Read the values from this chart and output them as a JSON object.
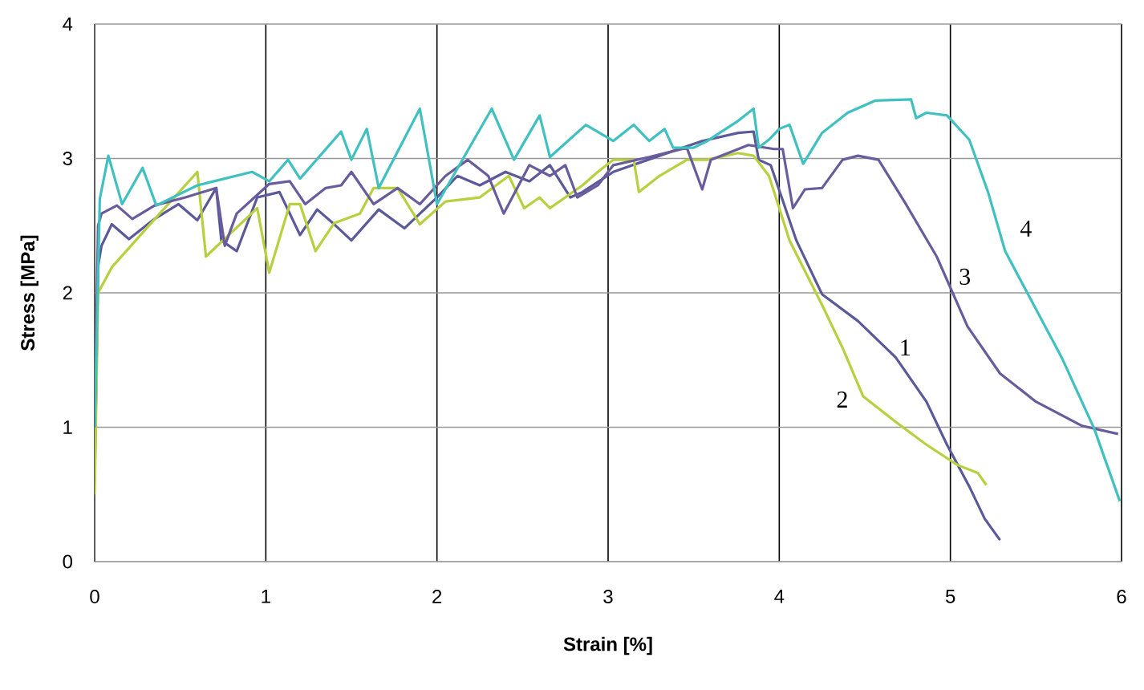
{
  "chart_data": {
    "type": "line",
    "xlabel": "Strain [%]",
    "ylabel": "Stress [MPa]",
    "xlim": [
      0,
      6
    ],
    "ylim": [
      0,
      4
    ],
    "xticks": [
      0,
      1,
      2,
      3,
      4,
      5,
      6
    ],
    "yticks": [
      0,
      1,
      2,
      3,
      4
    ],
    "grid": true,
    "line_style": "solid",
    "marker": "none",
    "series": [
      {
        "name": "1",
        "color": "#5a5a9a",
        "x": [
          0,
          0.02,
          0.04,
          0.1,
          0.2,
          0.35,
          0.49,
          0.6,
          0.71,
          0.74,
          0.83,
          0.95,
          1.08,
          1.2,
          1.3,
          1.4,
          1.5,
          1.66,
          1.81,
          2.0,
          2.12,
          2.25,
          2.4,
          2.54,
          2.66,
          2.78,
          2.85,
          3.03,
          3.3,
          3.55,
          3.76,
          3.85,
          3.88,
          3.95,
          4.1,
          4.25,
          4.46,
          4.68,
          4.86,
          4.98,
          5.11,
          5.2,
          5.29
        ],
        "values": [
          0.6,
          2.2,
          2.35,
          2.51,
          2.4,
          2.55,
          2.66,
          2.54,
          2.78,
          2.39,
          2.31,
          2.71,
          2.75,
          2.43,
          2.62,
          2.51,
          2.39,
          2.62,
          2.48,
          2.71,
          2.87,
          2.8,
          2.9,
          2.83,
          2.95,
          2.71,
          2.75,
          2.9,
          3.02,
          3.13,
          3.19,
          3.2,
          2.99,
          2.95,
          2.39,
          1.99,
          1.79,
          1.52,
          1.19,
          0.87,
          0.56,
          0.32,
          0.16
        ]
      },
      {
        "name": "2",
        "color": "#b8d040",
        "x": [
          0,
          0.02,
          0.1,
          0.38,
          0.6,
          0.65,
          0.8,
          0.95,
          1.02,
          1.14,
          1.2,
          1.29,
          1.4,
          1.55,
          1.63,
          1.77,
          1.9,
          2.05,
          2.25,
          2.42,
          2.51,
          2.6,
          2.66,
          2.85,
          2.94,
          3.03,
          3.15,
          3.18,
          3.3,
          3.46,
          3.58,
          3.76,
          3.85,
          3.94,
          4.03,
          4.06,
          4.25,
          4.37,
          4.49,
          4.68,
          4.86,
          5.04,
          5.16,
          5.21
        ],
        "values": [
          0.5,
          2.0,
          2.19,
          2.59,
          2.9,
          2.27,
          2.45,
          2.63,
          2.15,
          2.66,
          2.66,
          2.31,
          2.52,
          2.59,
          2.78,
          2.78,
          2.51,
          2.68,
          2.71,
          2.87,
          2.63,
          2.71,
          2.63,
          2.8,
          2.9,
          2.99,
          2.99,
          2.75,
          2.87,
          2.99,
          2.99,
          3.04,
          3.02,
          2.87,
          2.51,
          2.39,
          1.91,
          1.59,
          1.23,
          1.04,
          0.87,
          0.72,
          0.66,
          0.57
        ]
      },
      {
        "name": "3",
        "color": "#6a5c9c",
        "x": [
          0,
          0.02,
          0.04,
          0.13,
          0.22,
          0.35,
          0.53,
          0.71,
          0.76,
          0.83,
          1.02,
          1.14,
          1.23,
          1.35,
          1.44,
          1.5,
          1.63,
          1.77,
          1.9,
          2.05,
          2.18,
          2.3,
          2.39,
          2.54,
          2.66,
          2.75,
          2.82,
          2.94,
          3.03,
          3.24,
          3.46,
          3.55,
          3.6,
          3.82,
          3.97,
          4.02,
          4.08,
          4.15,
          4.25,
          4.37,
          4.46,
          4.58,
          4.74,
          4.92,
          5.01,
          5.1,
          5.29,
          5.5,
          5.77,
          5.98
        ],
        "values": [
          1.0,
          2.5,
          2.59,
          2.65,
          2.55,
          2.65,
          2.71,
          2.78,
          2.35,
          2.59,
          2.81,
          2.83,
          2.66,
          2.78,
          2.8,
          2.9,
          2.66,
          2.78,
          2.66,
          2.87,
          2.99,
          2.87,
          2.59,
          2.95,
          2.87,
          2.95,
          2.71,
          2.8,
          2.95,
          3.01,
          3.08,
          2.77,
          2.99,
          3.1,
          3.07,
          3.07,
          2.63,
          2.77,
          2.78,
          2.99,
          3.02,
          2.99,
          2.66,
          2.27,
          2.01,
          1.75,
          1.4,
          1.19,
          1.01,
          0.95
        ]
      },
      {
        "name": "4",
        "color": "#40c0c0",
        "x": [
          0,
          0.03,
          0.08,
          0.16,
          0.28,
          0.36,
          0.6,
          0.92,
          1.02,
          1.13,
          1.2,
          1.44,
          1.5,
          1.59,
          1.66,
          1.9,
          2.0,
          2.32,
          2.45,
          2.6,
          2.66,
          2.87,
          3.03,
          3.15,
          3.24,
          3.33,
          3.38,
          3.5,
          3.58,
          3.76,
          3.85,
          3.88,
          3.94,
          4.0,
          4.06,
          4.14,
          4.25,
          4.4,
          4.56,
          4.77,
          4.8,
          4.86,
          4.98,
          5.11,
          5.22,
          5.32,
          5.47,
          5.65,
          5.84,
          5.99
        ],
        "values": [
          1.0,
          2.7,
          3.02,
          2.66,
          2.93,
          2.65,
          2.8,
          2.9,
          2.83,
          2.99,
          2.85,
          3.2,
          2.99,
          3.22,
          2.78,
          3.37,
          2.66,
          3.37,
          2.99,
          3.32,
          3.01,
          3.25,
          3.13,
          3.25,
          3.13,
          3.22,
          3.08,
          3.08,
          3.13,
          3.28,
          3.37,
          3.08,
          3.14,
          3.22,
          3.25,
          2.96,
          3.19,
          3.34,
          3.43,
          3.44,
          3.3,
          3.34,
          3.32,
          3.14,
          2.75,
          2.31,
          1.95,
          1.52,
          0.99,
          0.45
        ]
      }
    ]
  }
}
